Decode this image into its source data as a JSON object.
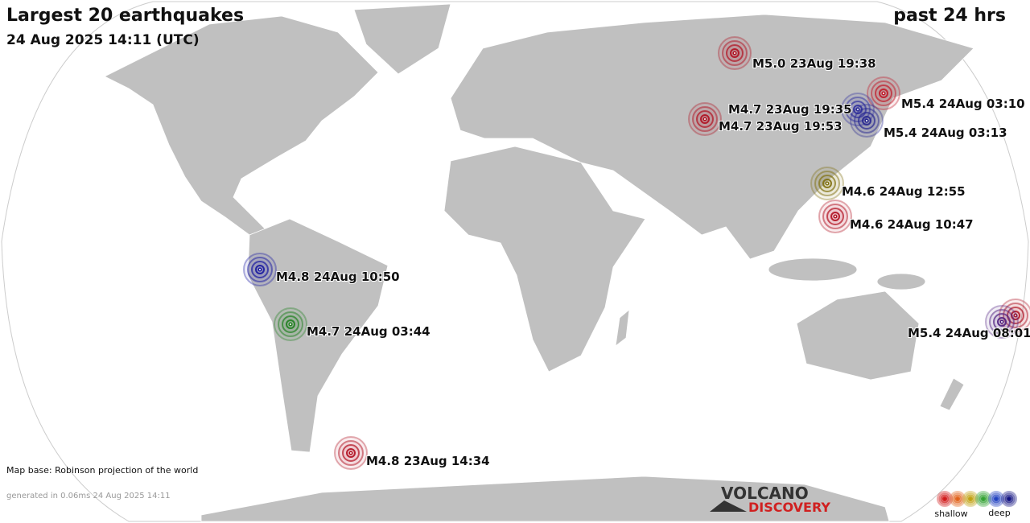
{
  "header": {
    "title": "Largest 20 earthquakes",
    "subtitle": "24 Aug 2025 14:11 (UTC)",
    "period": "past 24 hrs"
  },
  "quakes": [
    {
      "label": "M5.0 23Aug 19:38",
      "colors": [
        "#b01020"
      ]
    },
    {
      "label": "M5.4 24Aug 03:10",
      "colors": [
        "#c01828"
      ]
    },
    {
      "label": "M4.7 23Aug 19:35",
      "colors": [
        "#3030a0"
      ]
    },
    {
      "label": "M4.7 23Aug 19:53",
      "colors": [
        "#b01020"
      ]
    },
    {
      "label": "M5.4 24Aug 03:13",
      "colors": [
        "#282890"
      ]
    },
    {
      "label": "M4.6 24Aug 12:55",
      "colors": [
        "#807010"
      ]
    },
    {
      "label": "M4.6 24Aug 10:47",
      "colors": [
        "#b01020"
      ]
    },
    {
      "label": "M4.8 24Aug 10:50",
      "colors": [
        "#1818a0"
      ]
    },
    {
      "label": "M4.7 24Aug 03:44",
      "colors": [
        "#208020"
      ]
    },
    {
      "label": "M5.4 24Aug 08:01",
      "colors": [
        "#b01828",
        "#502080"
      ]
    },
    {
      "label": "M4.8 23Aug 14:34",
      "colors": [
        "#b01020"
      ]
    }
  ],
  "footer": {
    "map_base": "Map base: Robinson projection of the world",
    "generated": "generated in 0.06ms 24 Aug 2025 14:11"
  },
  "logo": {
    "line1": "VOLCANO",
    "line2": "DISCOVERY"
  },
  "legend": {
    "colors": [
      "#d01818",
      "#e06018",
      "#c0a010",
      "#30a030",
      "#2040c0",
      "#101080"
    ],
    "shallow": "shallow",
    "deep": "deep"
  }
}
